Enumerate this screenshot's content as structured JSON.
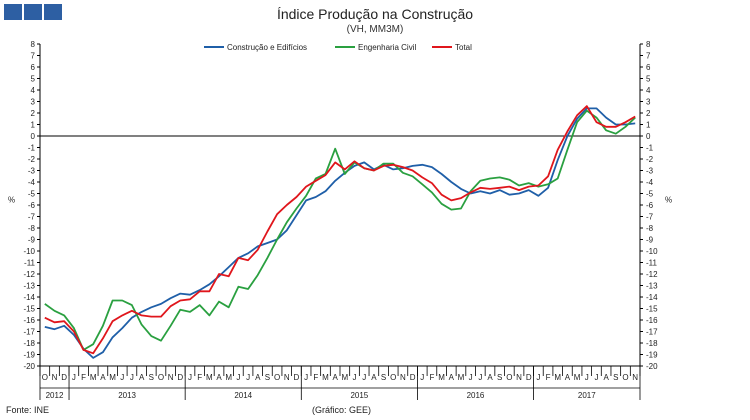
{
  "header": {
    "title": "Índice Produção na Construção",
    "subtitle": "(VH, MM3M)"
  },
  "footer": {
    "source": "Fonte: INE",
    "credit": "(Gráfico: GEE)"
  },
  "colors": {
    "logo": "#2d5fa3",
    "series": [
      "#1f5fa8",
      "#2aa040",
      "#e0161c"
    ]
  },
  "chart_data": {
    "type": "line",
    "y_left_label": "%",
    "y_right_label": "%",
    "ylim": [
      -20,
      8
    ],
    "y_ticks": [
      8,
      7,
      6,
      5,
      4,
      3,
      2,
      1,
      0,
      -1,
      -2,
      -3,
      -4,
      -5,
      -6,
      -7,
      -8,
      -9,
      -10,
      -11,
      -12,
      -13,
      -14,
      -15,
      -16,
      -17,
      -18,
      -19,
      -20
    ],
    "grid": false,
    "legend_position": "top-center",
    "month_labels": [
      "O",
      "N",
      "D",
      "J",
      "F",
      "M",
      "A",
      "M",
      "J",
      "J",
      "A",
      "S",
      "O",
      "N",
      "D",
      "J",
      "F",
      "M",
      "A",
      "M",
      "J",
      "J",
      "A",
      "S",
      "O",
      "N",
      "D",
      "J",
      "F",
      "M",
      "A",
      "M",
      "J",
      "J",
      "A",
      "S",
      "O",
      "N",
      "D",
      "J",
      "F",
      "M",
      "A",
      "M",
      "J",
      "J",
      "A",
      "S",
      "O",
      "N",
      "D",
      "J",
      "F",
      "M",
      "A",
      "M",
      "J",
      "J",
      "A",
      "S",
      "O",
      "N"
    ],
    "years": [
      {
        "label": "2012",
        "start": 0,
        "end": 2
      },
      {
        "label": "2013",
        "start": 3,
        "end": 14
      },
      {
        "label": "2014",
        "start": 15,
        "end": 26
      },
      {
        "label": "2015",
        "start": 27,
        "end": 38
      },
      {
        "label": "2016",
        "start": 39,
        "end": 50
      },
      {
        "label": "2017",
        "start": 51,
        "end": 61
      }
    ],
    "series": [
      {
        "name": "Construção e Edifícios",
        "values": [
          -16.6,
          -16.8,
          -16.5,
          -17.3,
          -18.5,
          -19.3,
          -18.8,
          -17.5,
          -16.7,
          -15.8,
          -15.3,
          -14.9,
          -14.6,
          -14.1,
          -13.7,
          -13.8,
          -13.4,
          -12.9,
          -12.2,
          -11.4,
          -10.6,
          -10.2,
          -9.6,
          -9.3,
          -9.0,
          -8.2,
          -6.9,
          -5.6,
          -5.3,
          -4.8,
          -3.9,
          -3.2,
          -2.6,
          -2.3,
          -2.9,
          -2.5,
          -2.9,
          -2.8,
          -2.6,
          -2.5,
          -2.7,
          -3.3,
          -4.0,
          -4.6,
          -5.0,
          -4.8,
          -5.0,
          -4.7,
          -5.1,
          -5.0,
          -4.7,
          -5.2,
          -4.5,
          -2.1,
          0.0,
          1.5,
          2.4,
          2.4,
          1.6,
          1.0,
          1.0,
          1.1
        ]
      },
      {
        "name": "Engenharia Civil",
        "values": [
          -14.6,
          -15.2,
          -15.6,
          -16.7,
          -18.6,
          -18.1,
          -16.5,
          -14.3,
          -14.3,
          -14.7,
          -16.4,
          -17.4,
          -17.8,
          -16.5,
          -15.1,
          -15.3,
          -14.7,
          -15.6,
          -14.4,
          -14.9,
          -13.1,
          -13.3,
          -12.1,
          -10.6,
          -9.0,
          -7.5,
          -6.3,
          -5.2,
          -3.7,
          -3.3,
          -1.1,
          -3.3,
          -2.3,
          -2.8,
          -3.0,
          -2.4,
          -2.4,
          -3.2,
          -3.5,
          -4.2,
          -4.9,
          -5.9,
          -6.4,
          -6.3,
          -4.8,
          -3.9,
          -3.7,
          -3.6,
          -3.8,
          -4.3,
          -4.1,
          -4.4,
          -4.2,
          -3.7,
          -1.2,
          1.2,
          2.2,
          1.6,
          0.5,
          0.2,
          0.8,
          1.6
        ]
      },
      {
        "name": "Total",
        "values": [
          -15.8,
          -16.2,
          -16.1,
          -17.0,
          -18.6,
          -18.9,
          -17.6,
          -16.1,
          -15.6,
          -15.2,
          -15.6,
          -15.7,
          -15.7,
          -14.8,
          -14.3,
          -14.2,
          -13.5,
          -13.5,
          -12.0,
          -12.2,
          -10.6,
          -10.8,
          -9.9,
          -8.3,
          -6.8,
          -6.0,
          -5.3,
          -4.4,
          -3.9,
          -3.4,
          -2.3,
          -2.9,
          -2.2,
          -2.8,
          -3.0,
          -2.6,
          -2.5,
          -2.7,
          -3.0,
          -3.6,
          -4.1,
          -5.1,
          -5.6,
          -5.4,
          -4.9,
          -4.5,
          -4.6,
          -4.5,
          -4.4,
          -4.7,
          -4.4,
          -4.3,
          -3.5,
          -1.2,
          0.4,
          1.8,
          2.6,
          1.2,
          0.8,
          0.8,
          1.2,
          1.7
        ]
      }
    ]
  }
}
